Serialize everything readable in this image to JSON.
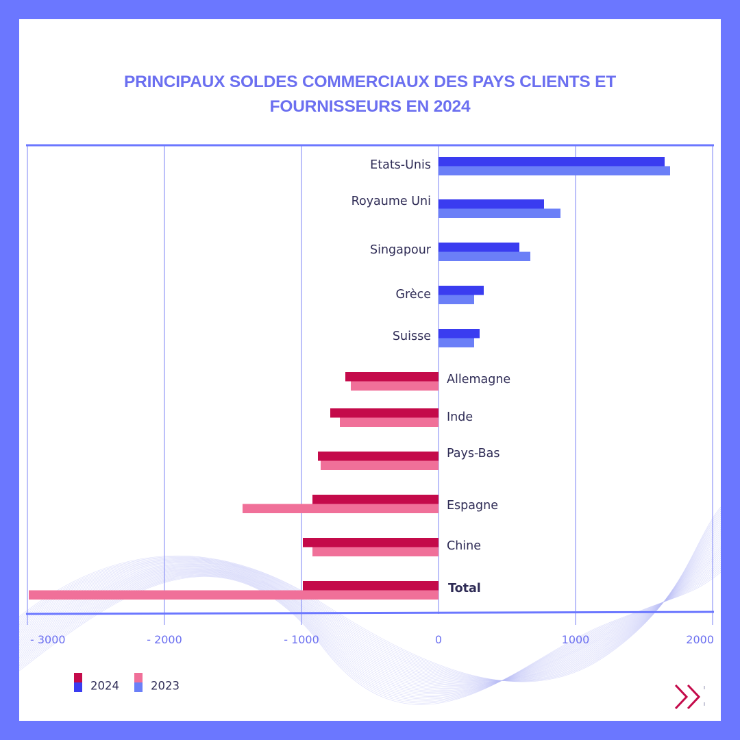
{
  "page": {
    "background_color": "#6b77ff",
    "card_color": "#ffffff",
    "next_icon": "double-chevron-right-icon"
  },
  "chart_data": {
    "type": "bar",
    "orientation": "horizontal",
    "title_lines": [
      "PRINCIPAUX SOLDES COMMERCIAUX DES PAYS CLIENTS ET",
      "FOURNISSEURS EN 2024"
    ],
    "categories": [
      "Etats-Unis",
      "Royaume Uni",
      "Singapour",
      "Grèce",
      "Suisse",
      "Allemagne",
      "Inde",
      "Pays-Bas",
      "Espagne",
      "Chine",
      "Total"
    ],
    "series": [
      {
        "name": "2024",
        "values": [
          1650,
          770,
          590,
          330,
          300,
          -680,
          -790,
          -880,
          -920,
          -990,
          -990
        ]
      },
      {
        "name": "2023",
        "values": [
          1690,
          890,
          670,
          260,
          260,
          -640,
          -720,
          -860,
          -1430,
          -920,
          -2990
        ]
      }
    ],
    "colors": {
      "2024_positive": "#3a3cf0",
      "2023_positive": "#6b7ff7",
      "2024_negative": "#c40a4a",
      "2023_negative": "#f07099",
      "axis": "#6b77ff",
      "grid": "#7a82f5"
    },
    "xlim": [
      -3000,
      2000
    ],
    "x_ticks": [
      -3000,
      -2000,
      -1000,
      0,
      1000,
      2000
    ],
    "x_tick_labels": [
      "- 3000",
      "- 2000",
      "- 1000",
      "0",
      "1000",
      "2000"
    ],
    "xlabel": "",
    "ylabel": "",
    "grid": true,
    "legend": {
      "placement": "bottom-left",
      "entries": [
        {
          "label": "2024",
          "colors": [
            "#c40a4a",
            "#3a3cf0"
          ]
        },
        {
          "label": "2023",
          "colors": [
            "#f07099",
            "#6b7ff7"
          ]
        }
      ]
    },
    "bold_categories": [
      "Total"
    ]
  }
}
